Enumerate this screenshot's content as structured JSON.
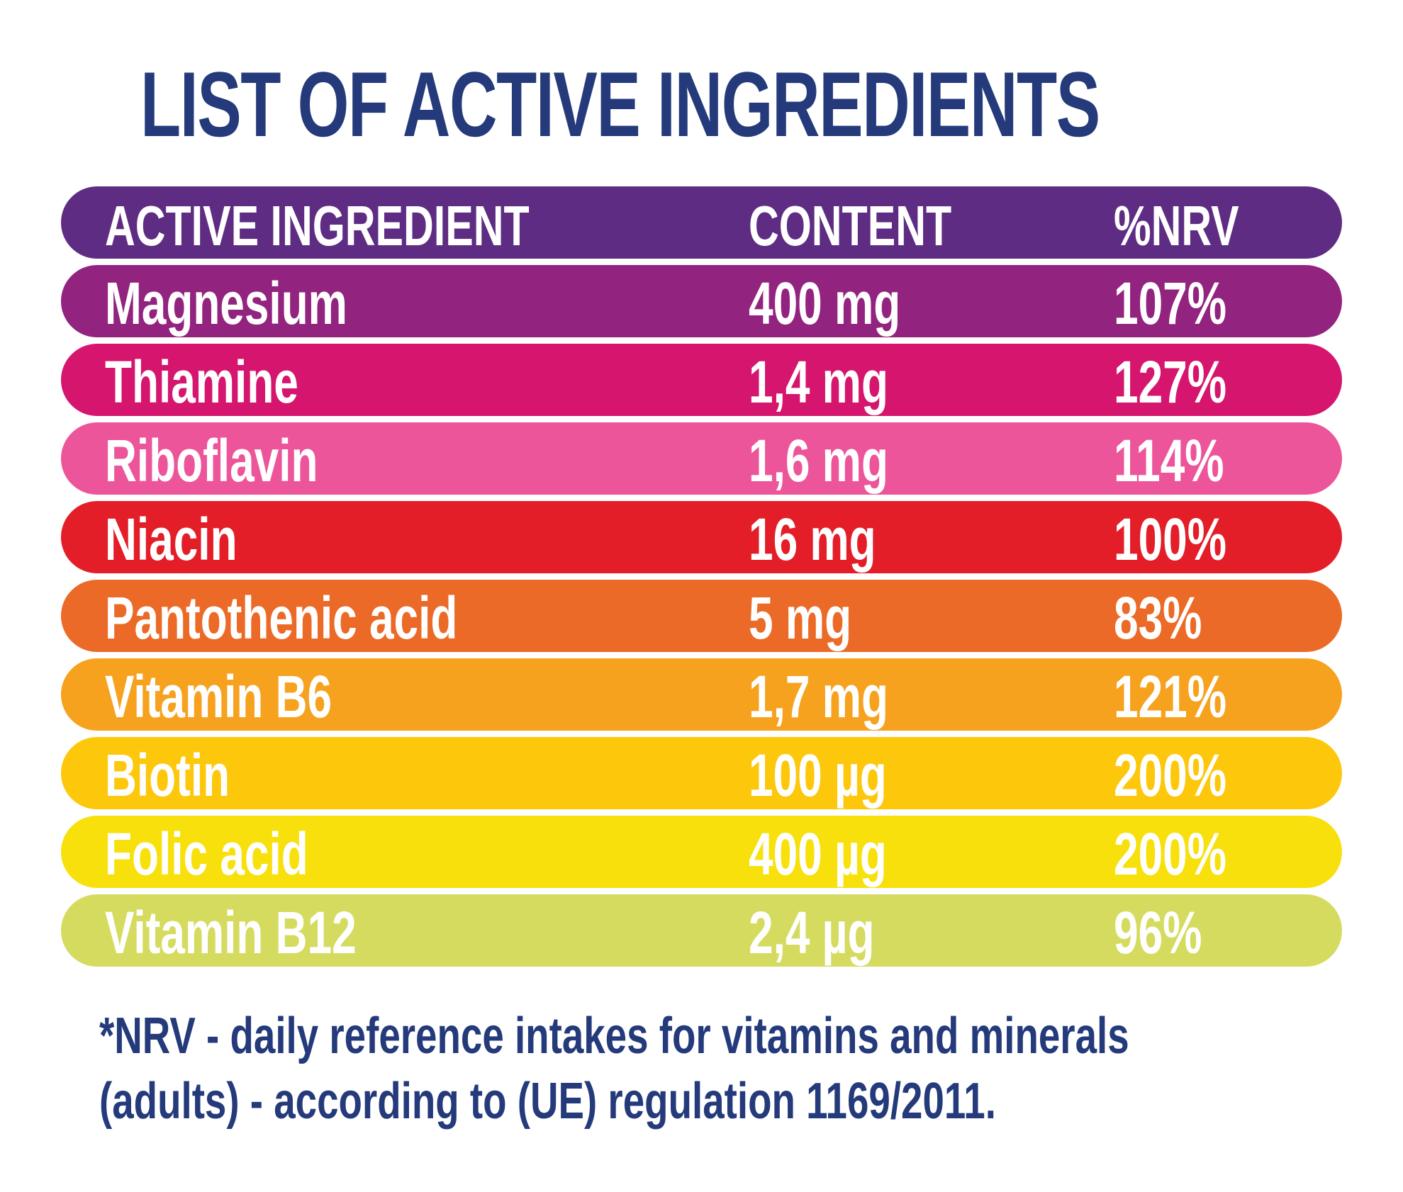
{
  "title": "LIST OF ACTIVE INGREDIENTS",
  "table": {
    "headers": [
      "ACTIVE INGREDIENT",
      "CONTENT",
      "%NRV"
    ],
    "header_color": "#5e2d83",
    "rows": [
      {
        "ingredient": "Magnesium",
        "content": "400 mg",
        "nrv": "107%",
        "color": "#92237f"
      },
      {
        "ingredient": "Thiamine",
        "content": "1,4 mg",
        "nrv": "127%",
        "color": "#d5156e"
      },
      {
        "ingredient": "Riboflavin",
        "content": "1,6 mg",
        "nrv": "114%",
        "color": "#ec559a"
      },
      {
        "ingredient": "Niacin",
        "content": "16 mg",
        "nrv": "100%",
        "color": "#e31e28"
      },
      {
        "ingredient": "Pantothenic acid",
        "content": "5 mg",
        "nrv": "83%",
        "color": "#ec6a27"
      },
      {
        "ingredient": "Vitamin B6",
        "content": "1,7 mg",
        "nrv": "121%",
        "color": "#f6a21f"
      },
      {
        "ingredient": "Biotin",
        "content": "100 µg",
        "nrv": "200%",
        "color": "#fdc70c"
      },
      {
        "ingredient": "Folic acid",
        "content": "400 µg",
        "nrv": "200%",
        "color": "#f7e00b"
      },
      {
        "ingredient": "Vitamin B12",
        "content": "2,4 µg",
        "nrv": "96%",
        "color": "#d5db5f"
      }
    ]
  },
  "footnote": {
    "line1": "*NRV - daily reference intakes for vitamins and minerals",
    "line2": "(adults) - according to (UE) regulation 1169/2011."
  }
}
